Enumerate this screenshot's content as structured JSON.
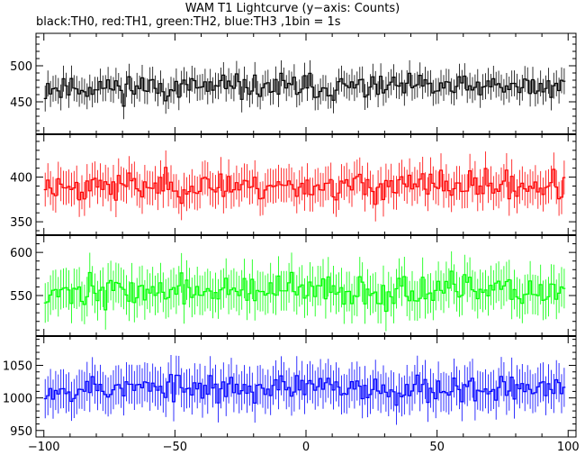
{
  "title": "WAM T1 Lightcurve (y−axis: Counts)",
  "subtitle": "black:TH0, red:TH1, green:TH2, blue:TH3 ,1bin = 1s",
  "chart_data": {
    "type": "line",
    "xlim": [
      -103,
      103
    ],
    "x_ticks": [
      -100,
      -50,
      0,
      50,
      100
    ],
    "x_tick_labels": [
      "−100",
      "−50",
      "0",
      "50",
      "100"
    ],
    "x": {
      "start": -100,
      "end": 98,
      "step": 1
    },
    "panels": [
      {
        "name": "TH0",
        "color": "#000000",
        "ylim": [
          405,
          545
        ],
        "yticks": [
          450,
          500
        ],
        "ytick_labels": [
          "450",
          "500"
        ],
        "mean": 470,
        "noise": 20,
        "errorbar": 18,
        "seed": 11
      },
      {
        "name": "TH1",
        "color": "#ff0000",
        "ylim": [
          335,
          448
        ],
        "yticks": [
          350,
          400
        ],
        "ytick_labels": [
          "350",
          "400"
        ],
        "mean": 390,
        "noise": 18,
        "errorbar": 19,
        "seed": 23
      },
      {
        "name": "TH2",
        "color": "#00ff00",
        "ylim": [
          503,
          620
        ],
        "yticks": [
          550,
          600
        ],
        "ytick_labels": [
          "550",
          "600"
        ],
        "mean": 555,
        "noise": 20,
        "errorbar": 23,
        "seed": 37
      },
      {
        "name": "TH3",
        "color": "#0000ff",
        "ylim": [
          940,
          1095
        ],
        "yticks": [
          950,
          1000,
          1050
        ],
        "ytick_labels": [
          "950",
          "1000",
          "1050"
        ],
        "mean": 1015,
        "noise": 24,
        "errorbar": 30,
        "seed": 53
      }
    ]
  }
}
